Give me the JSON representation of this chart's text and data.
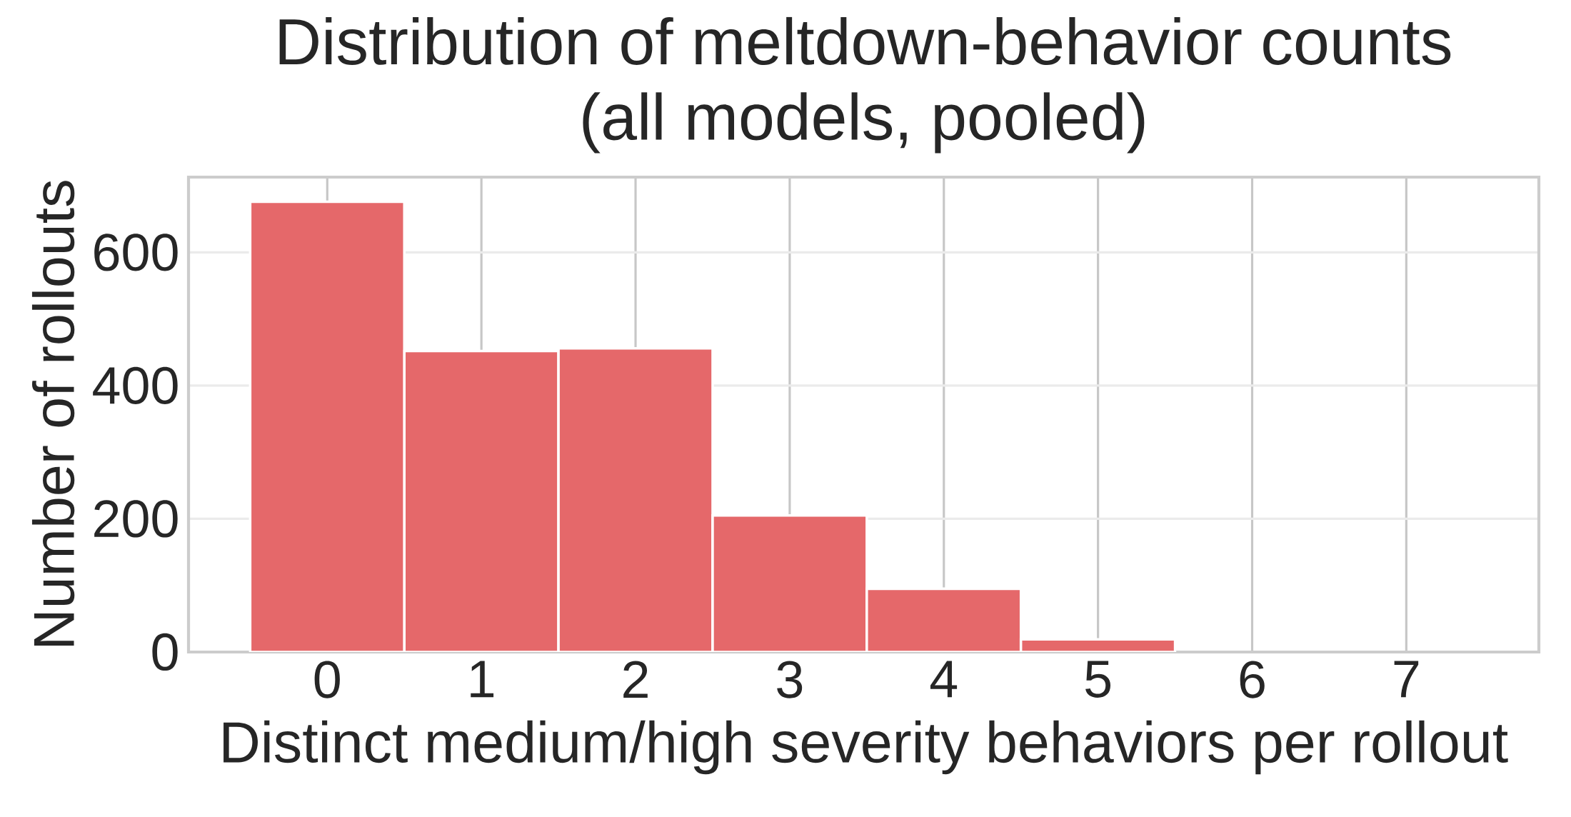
{
  "chart_data": {
    "type": "histogram",
    "title": "Distribution of meltdown-behavior counts\n(all models, pooled)",
    "xlabel": "Distinct medium/high severity behaviors per rollout",
    "ylabel": "Number of rollouts",
    "bins": [
      -0.5,
      0.5,
      1.5,
      2.5,
      3.5,
      4.5,
      5.5,
      6.5
    ],
    "values": [
      676,
      452,
      456,
      205,
      95,
      19,
      null
    ],
    "color": "#e5686a",
    "xlim": [
      -0.9,
      7.86
    ],
    "ylim": [
      0,
      713
    ],
    "xticks": [
      0,
      1,
      2,
      3,
      4,
      5,
      6,
      7
    ],
    "yticks": [
      0,
      200,
      400,
      600
    ],
    "grid": true
  }
}
